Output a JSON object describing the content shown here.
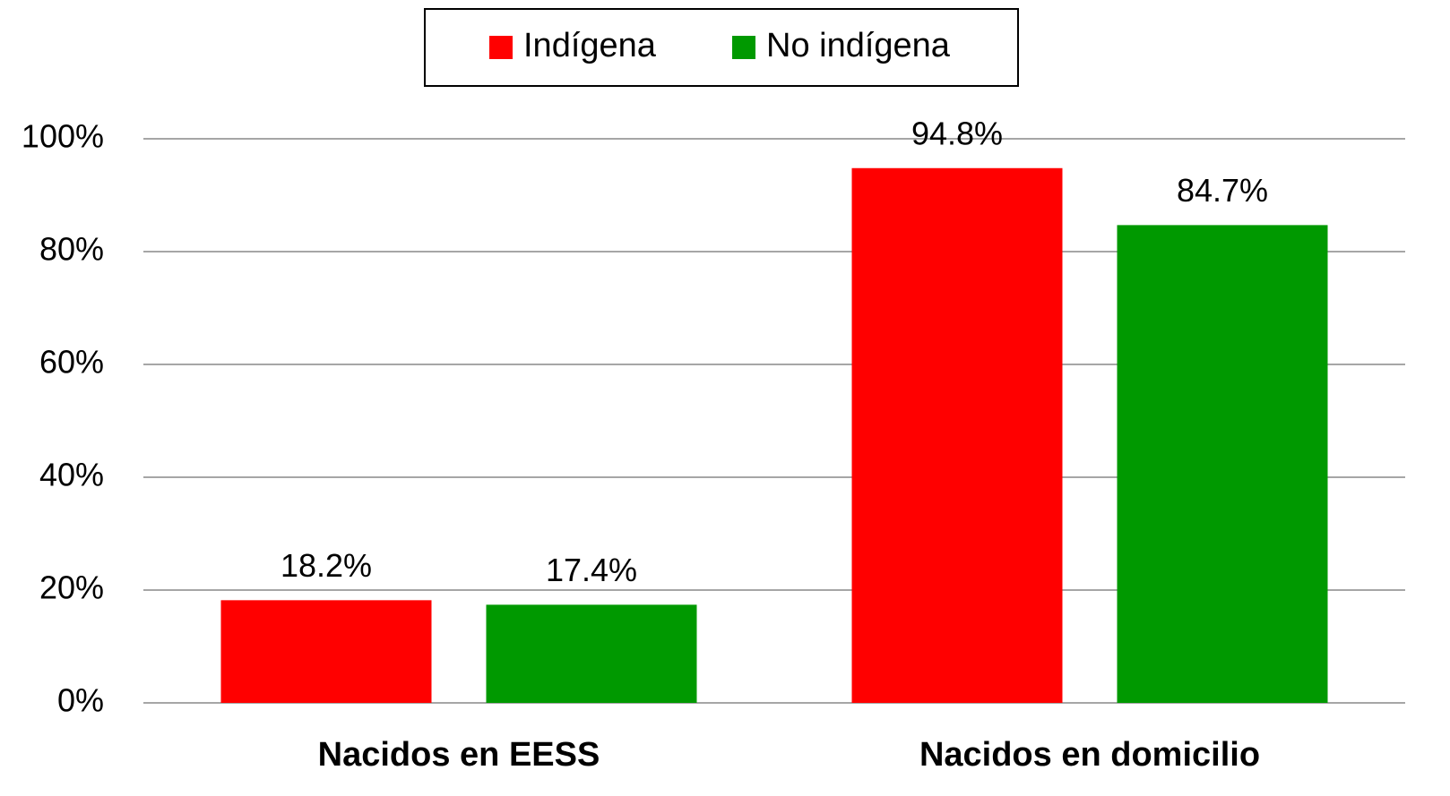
{
  "chart_data": {
    "type": "bar",
    "categories": [
      "Nacidos en EESS",
      "Nacidos en domicilio"
    ],
    "series": [
      {
        "name": "Indígena",
        "color": "#ff0000",
        "values": [
          18.2,
          94.8
        ],
        "value_labels": [
          "18.2%",
          "94.8%"
        ]
      },
      {
        "name": "No indígena",
        "color": "#009900",
        "values": [
          17.4,
          84.7
        ],
        "value_labels": [
          "17.4%",
          "84.7%"
        ]
      }
    ],
    "ylim": [
      0,
      100
    ],
    "yticks": [
      {
        "value": 0,
        "label": "0%"
      },
      {
        "value": 20,
        "label": "20%"
      },
      {
        "value": 40,
        "label": "40%"
      },
      {
        "value": 60,
        "label": "60%"
      },
      {
        "value": 80,
        "label": "80%"
      },
      {
        "value": 100,
        "label": "100%"
      }
    ],
    "grid": true,
    "legend": "top"
  }
}
